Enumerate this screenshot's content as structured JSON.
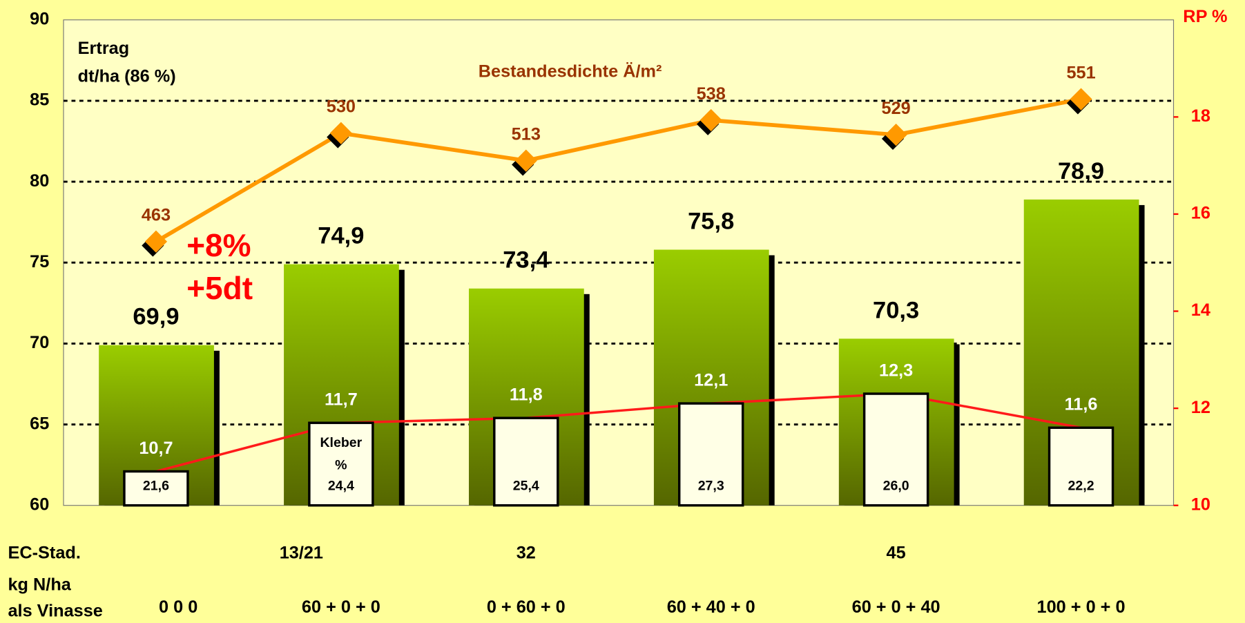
{
  "chart_data": {
    "type": "bar",
    "y_label": [
      "Ertrag",
      "dt/ha (86 %)"
    ],
    "y2_label": "RP %",
    "annotations": [
      "+8%",
      "+5dt"
    ],
    "row_labels": [
      "EC-Stad.",
      "kg N/ha",
      "als Vinasse"
    ],
    "categories": [
      "0 0 0",
      "60 + 0 + 0",
      "0 + 60 + 0",
      "60 + 40 + 0",
      "60 + 0 + 40",
      "100 + 0 + 0"
    ],
    "ec_stages": [
      null,
      "13/21",
      "32",
      null,
      "45",
      null
    ],
    "ylim": [
      60,
      90
    ],
    "yticks": [
      60,
      65,
      70,
      75,
      80,
      85,
      90
    ],
    "y2lim": [
      10,
      20
    ],
    "y2ticks": [
      10,
      12,
      14,
      16,
      18
    ],
    "grid": true,
    "yield": {
      "color": "#88b800",
      "values": [
        69.9,
        74.9,
        73.4,
        75.8,
        70.3,
        78.9
      ],
      "value_labels": [
        "69,9",
        "74,9",
        "73,4",
        "75,8",
        "70,3",
        "78,9"
      ]
    },
    "protein": {
      "axis": "y2",
      "color": "#ff1a1a",
      "values": [
        10.7,
        11.7,
        11.8,
        12.1,
        12.3,
        11.6
      ],
      "value_labels": [
        "10,7",
        "11,7",
        "11,8",
        "12,1",
        "12,3",
        "11,6"
      ]
    },
    "kleber": {
      "name": [
        "Kleber",
        "%"
      ],
      "values": [
        21.6,
        24.4,
        25.4,
        27.3,
        26.0,
        22.2
      ],
      "value_labels": [
        "21,6",
        "24,4",
        "25,4",
        "27,3",
        "26,0",
        "22,2"
      ]
    },
    "density": {
      "name": "Bestandesdichte Ä/m²",
      "color": "#ff9900",
      "label_color": "#993300",
      "lim": [
        300,
        600
      ],
      "values": [
        463,
        530,
        513,
        538,
        529,
        551
      ]
    }
  }
}
